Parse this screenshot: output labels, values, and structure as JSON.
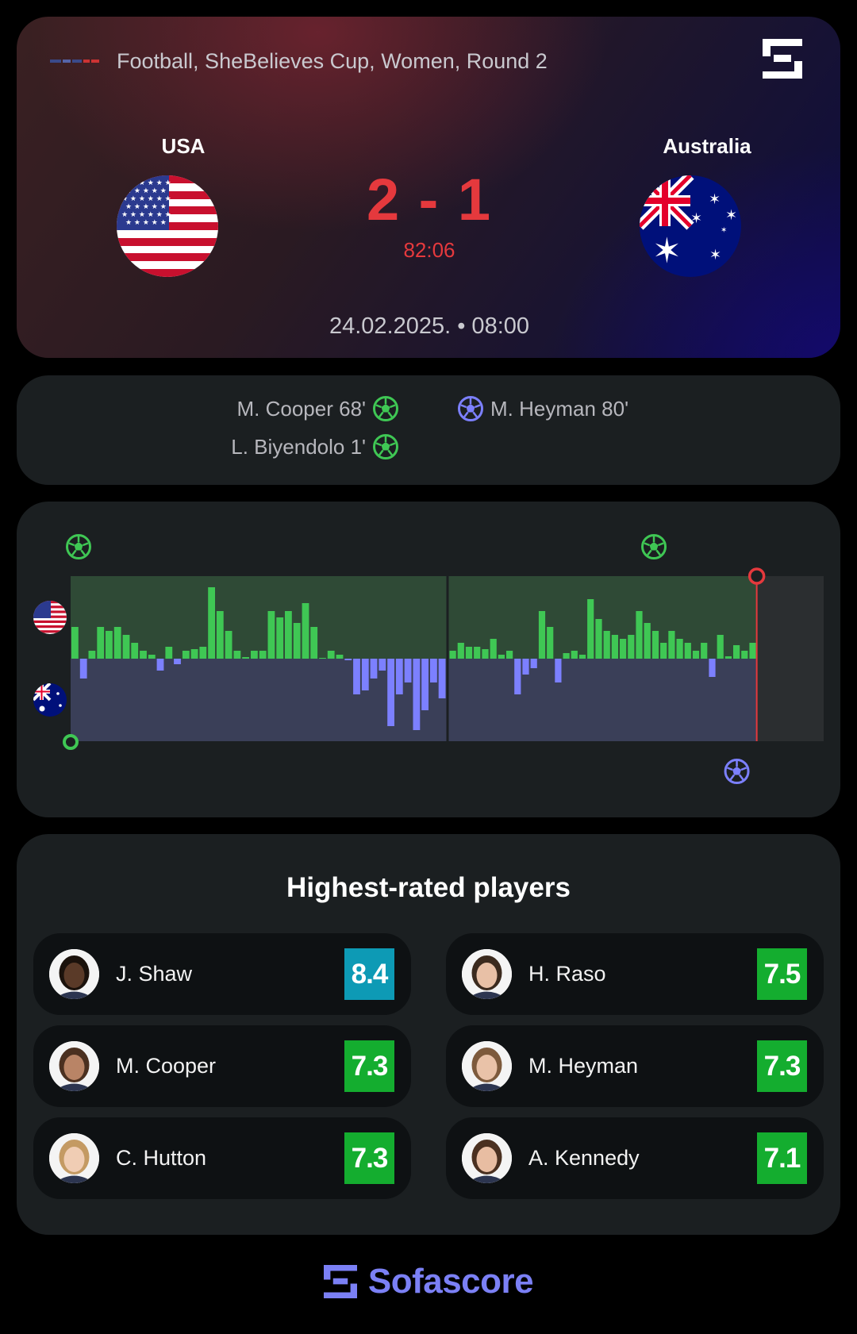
{
  "header": {
    "breadcrumb": "Football, SheBelieves Cup, Women, Round 2",
    "home_team": "USA",
    "away_team": "Australia",
    "score": "2 - 1",
    "clock": "82:06",
    "datetime": "24.02.2025. • 08:00"
  },
  "goals": {
    "home": [
      {
        "text": "M. Cooper 68'"
      },
      {
        "text": "L. Biyendolo 1'"
      }
    ],
    "away": [
      {
        "text": "M. Heyman 80'"
      }
    ]
  },
  "momentum": {
    "current_minute": 82,
    "home_color": "#3fc754",
    "away_color": "#7c80ff",
    "home_goal_minutes": [
      1,
      68
    ],
    "away_goal_minutes": [
      80
    ],
    "first_half": [
      4,
      -2.5,
      1,
      4,
      3.5,
      4,
      3,
      2,
      1,
      0.5,
      -1.5,
      1.5,
      -0.7,
      1,
      1.2,
      1.5,
      9,
      6,
      3.5,
      1,
      0.2,
      1,
      1,
      6,
      5.2,
      6,
      4.5,
      7,
      4,
      0.1,
      1,
      0.5,
      -0.2,
      -4.5,
      -4,
      -2.5,
      -1.5,
      -8.5,
      -4.5,
      -3,
      -9,
      -6.5,
      -3,
      -5
    ],
    "second_half": [
      1,
      2,
      1.5,
      1.5,
      1.2,
      2.5,
      0.5,
      1,
      -4.5,
      -2,
      -1.2,
      6,
      4,
      -3,
      0.7,
      1,
      0.5,
      7.5,
      5,
      3.5,
      3,
      2.5,
      3,
      6,
      4.5,
      3.5,
      2,
      3.5,
      2.5,
      2,
      1,
      2,
      -2.3,
      3,
      0.3,
      1.7,
      1,
      2
    ]
  },
  "players": {
    "title": "Highest-rated players",
    "list": [
      {
        "name": "J. Shaw",
        "rating": "8.4",
        "color": "#0d9ab5",
        "skin": "#5a3a28",
        "hair": "#1b120c"
      },
      {
        "name": "H. Raso",
        "rating": "7.5",
        "color": "#14ad2f",
        "skin": "#e8c0a6",
        "hair": "#3b2a1e"
      },
      {
        "name": "M. Cooper",
        "rating": "7.3",
        "color": "#14ad2f",
        "skin": "#b98466",
        "hair": "#4b3020"
      },
      {
        "name": "M. Heyman",
        "rating": "7.3",
        "color": "#14ad2f",
        "skin": "#e9c2a8",
        "hair": "#7d5a3c"
      },
      {
        "name": "C. Hutton",
        "rating": "7.3",
        "color": "#14ad2f",
        "skin": "#f0cdb4",
        "hair": "#c49a63"
      },
      {
        "name": "A. Kennedy",
        "rating": "7.1",
        "color": "#14ad2f",
        "skin": "#e8bda2",
        "hair": "#4a3020"
      }
    ]
  },
  "footer": {
    "brand": "Sofascore"
  }
}
